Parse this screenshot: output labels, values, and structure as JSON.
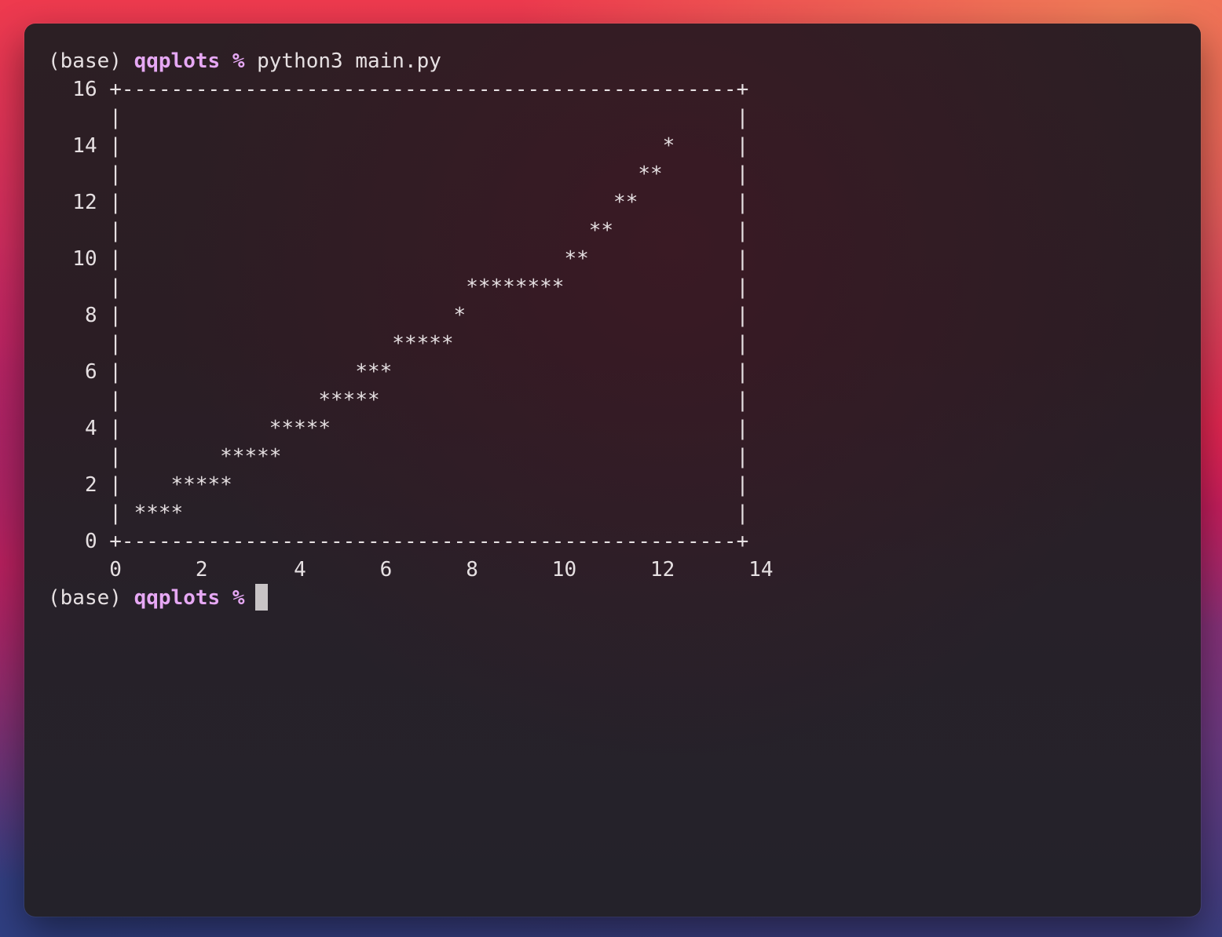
{
  "terminal": {
    "prompt_env": "(base)",
    "prompt_dir": "qqplots",
    "prompt_symbol": "%",
    "command": "python3 main.py",
    "plot_lines": [
      "  16 +--------------------------------------------------+",
      "     |                                                  |",
      "  14 |                                            *     |",
      "     |                                          **      |",
      "  12 |                                        **        |",
      "     |                                      **          |",
      "  10 |                                    **            |",
      "     |                            ********              |",
      "   8 |                           *                      |",
      "     |                      *****                       |",
      "   6 |                   ***                            |",
      "     |                *****                             |",
      "   4 |            *****                                 |",
      "     |        *****                                     |",
      "   2 |    *****                                         |",
      "     | ****                                             |",
      "   0 +--------------------------------------------------+",
      "     0      2       4      6      8      10      12      14"
    ],
    "colors": {
      "prompt_accent": "#e6a8f4",
      "text": "#e6e0e2",
      "cursor": "#c8c4c6"
    }
  },
  "chart_data": {
    "type": "scatter",
    "title": "",
    "xlabel": "",
    "ylabel": "",
    "xlim": [
      0,
      14
    ],
    "ylim": [
      0,
      16
    ],
    "x_ticks": [
      0,
      2,
      4,
      6,
      8,
      10,
      12,
      14
    ],
    "y_ticks": [
      0,
      2,
      4,
      6,
      8,
      10,
      12,
      14,
      16
    ],
    "grid": false,
    "points": [
      {
        "x": 0.5,
        "y": 1
      },
      {
        "x": 0.8,
        "y": 1
      },
      {
        "x": 1.1,
        "y": 1
      },
      {
        "x": 1.4,
        "y": 1
      },
      {
        "x": 1.3,
        "y": 2
      },
      {
        "x": 1.6,
        "y": 2
      },
      {
        "x": 1.9,
        "y": 2
      },
      {
        "x": 2.1,
        "y": 2
      },
      {
        "x": 2.4,
        "y": 2
      },
      {
        "x": 2.5,
        "y": 3
      },
      {
        "x": 2.8,
        "y": 3
      },
      {
        "x": 3.1,
        "y": 3
      },
      {
        "x": 3.3,
        "y": 3
      },
      {
        "x": 3.6,
        "y": 3
      },
      {
        "x": 3.7,
        "y": 4
      },
      {
        "x": 4.0,
        "y": 4
      },
      {
        "x": 4.3,
        "y": 4
      },
      {
        "x": 4.5,
        "y": 4
      },
      {
        "x": 4.8,
        "y": 4
      },
      {
        "x": 4.9,
        "y": 5
      },
      {
        "x": 5.2,
        "y": 5
      },
      {
        "x": 5.5,
        "y": 5
      },
      {
        "x": 5.7,
        "y": 5
      },
      {
        "x": 6.0,
        "y": 5
      },
      {
        "x": 6.5,
        "y": 6
      },
      {
        "x": 6.8,
        "y": 6
      },
      {
        "x": 7.0,
        "y": 6
      },
      {
        "x": 7.3,
        "y": 7
      },
      {
        "x": 7.6,
        "y": 7
      },
      {
        "x": 7.9,
        "y": 7
      },
      {
        "x": 8.1,
        "y": 7
      },
      {
        "x": 8.4,
        "y": 7
      },
      {
        "x": 8.6,
        "y": 8
      },
      {
        "x": 9.0,
        "y": 9
      },
      {
        "x": 9.3,
        "y": 9
      },
      {
        "x": 9.6,
        "y": 9
      },
      {
        "x": 9.9,
        "y": 9
      },
      {
        "x": 10.1,
        "y": 9
      },
      {
        "x": 10.4,
        "y": 9
      },
      {
        "x": 10.7,
        "y": 9
      },
      {
        "x": 11.0,
        "y": 9
      },
      {
        "x": 11.1,
        "y": 10
      },
      {
        "x": 11.4,
        "y": 10
      },
      {
        "x": 11.7,
        "y": 11
      },
      {
        "x": 12.0,
        "y": 11
      },
      {
        "x": 12.3,
        "y": 12
      },
      {
        "x": 12.6,
        "y": 12
      },
      {
        "x": 12.8,
        "y": 13
      },
      {
        "x": 13.1,
        "y": 13
      },
      {
        "x": 13.5,
        "y": 14
      }
    ],
    "marker": "*"
  }
}
